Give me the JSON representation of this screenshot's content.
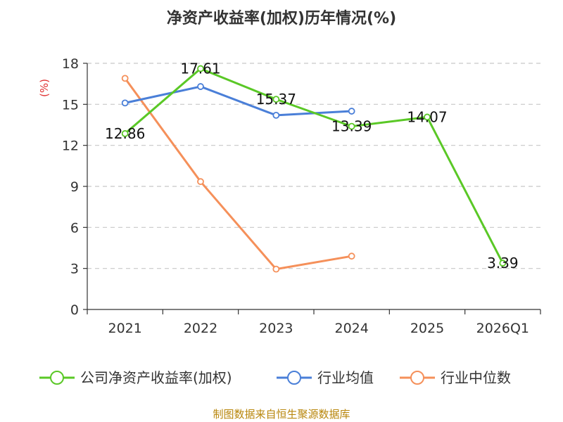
{
  "chart_data": {
    "type": "line",
    "title": "净资产收益率(加权)历年情况(%)",
    "ylabel": "(%)",
    "xlabel": "",
    "categories": [
      "2021",
      "2022",
      "2023",
      "2024",
      "2025",
      "2026Q1"
    ],
    "ylim": [
      0,
      18
    ],
    "yticks": [
      0,
      3,
      6,
      9,
      12,
      15,
      18
    ],
    "grid": true,
    "legend_position": "bottom",
    "series": [
      {
        "name": "公司净资产收益率(加权)",
        "color": "#5ac826",
        "values": [
          12.86,
          17.61,
          15.37,
          13.39,
          14.07,
          3.39
        ],
        "labels": [
          "12.86",
          "17.61",
          "15.37",
          "13.39",
          "14.07",
          "3.39"
        ]
      },
      {
        "name": "行业均值",
        "color": "#4a7fd8",
        "values": [
          15.1,
          16.3,
          14.2,
          14.5,
          null,
          null
        ]
      },
      {
        "name": "行业中位数",
        "color": "#f5905a",
        "values": [
          16.9,
          9.35,
          2.95,
          3.9,
          null,
          null
        ]
      }
    ],
    "source": "制图数据来自恒生聚源数据库"
  }
}
